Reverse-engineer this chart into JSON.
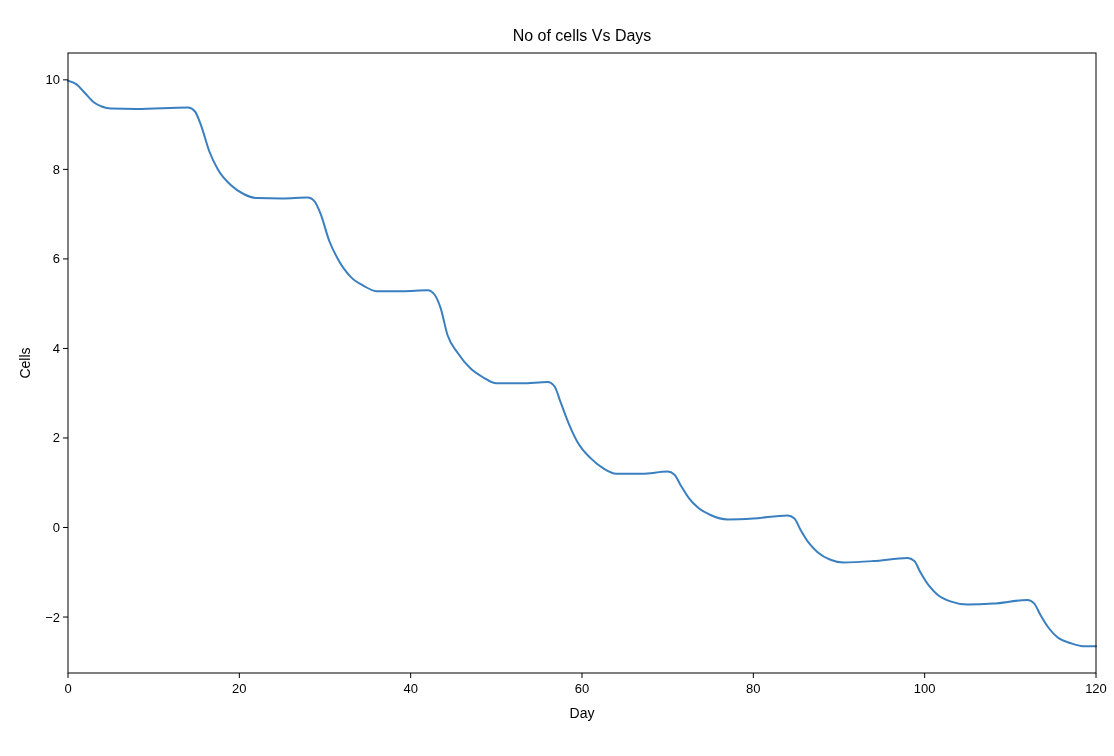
{
  "chart_data": {
    "type": "line",
    "title": "No of cells Vs Days",
    "xlabel": "Day",
    "ylabel": "Cells",
    "xlim": [
      0,
      120
    ],
    "xticks": [
      0,
      20,
      40,
      60,
      80,
      100,
      120
    ],
    "ylim": [
      -3.25,
      10.6
    ],
    "yticks": [
      -2,
      0,
      2,
      4,
      6,
      8,
      10
    ],
    "grid": false,
    "series": [
      {
        "color": "#3a7fc0",
        "x": [
          0,
          1,
          2,
          3,
          4,
          5,
          8,
          14,
          14.8,
          15.5,
          16.5,
          17.5,
          19,
          20.5,
          22,
          25,
          28,
          28.8,
          29.5,
          30.5,
          31.5,
          33,
          34.5,
          36,
          39,
          42,
          42.8,
          43.5,
          44.3,
          45.5,
          47,
          48.5,
          50,
          53,
          56,
          56.8,
          57.5,
          58.5,
          59.5,
          61,
          62.5,
          64,
          67,
          70,
          70.8,
          71.5,
          72.5,
          73.5,
          75,
          77,
          80,
          84,
          84.8,
          85.5,
          86.5,
          87.5,
          89,
          90.5,
          94,
          98,
          98.8,
          99.5,
          100.5,
          101.5,
          103,
          105,
          108,
          112,
          112.8,
          113.5,
          114.5,
          115.5,
          117,
          118.5,
          120
        ],
        "values": [
          9.98,
          9.9,
          9.7,
          9.5,
          9.4,
          9.36,
          9.35,
          9.38,
          9.3,
          9.0,
          8.4,
          8.0,
          7.65,
          7.45,
          7.36,
          7.35,
          7.37,
          7.28,
          7.0,
          6.4,
          6.0,
          5.6,
          5.4,
          5.28,
          5.28,
          5.3,
          5.2,
          4.9,
          4.3,
          3.9,
          3.55,
          3.35,
          3.22,
          3.22,
          3.25,
          3.15,
          2.8,
          2.3,
          1.9,
          1.55,
          1.32,
          1.2,
          1.2,
          1.25,
          1.18,
          0.95,
          0.65,
          0.45,
          0.28,
          0.18,
          0.2,
          0.27,
          0.2,
          -0.05,
          -0.35,
          -0.55,
          -0.72,
          -0.78,
          -0.75,
          -0.68,
          -0.75,
          -1.0,
          -1.3,
          -1.5,
          -1.65,
          -1.72,
          -1.7,
          -1.62,
          -1.7,
          -1.95,
          -2.25,
          -2.45,
          -2.58,
          -2.65,
          -2.65
        ]
      }
    ]
  }
}
